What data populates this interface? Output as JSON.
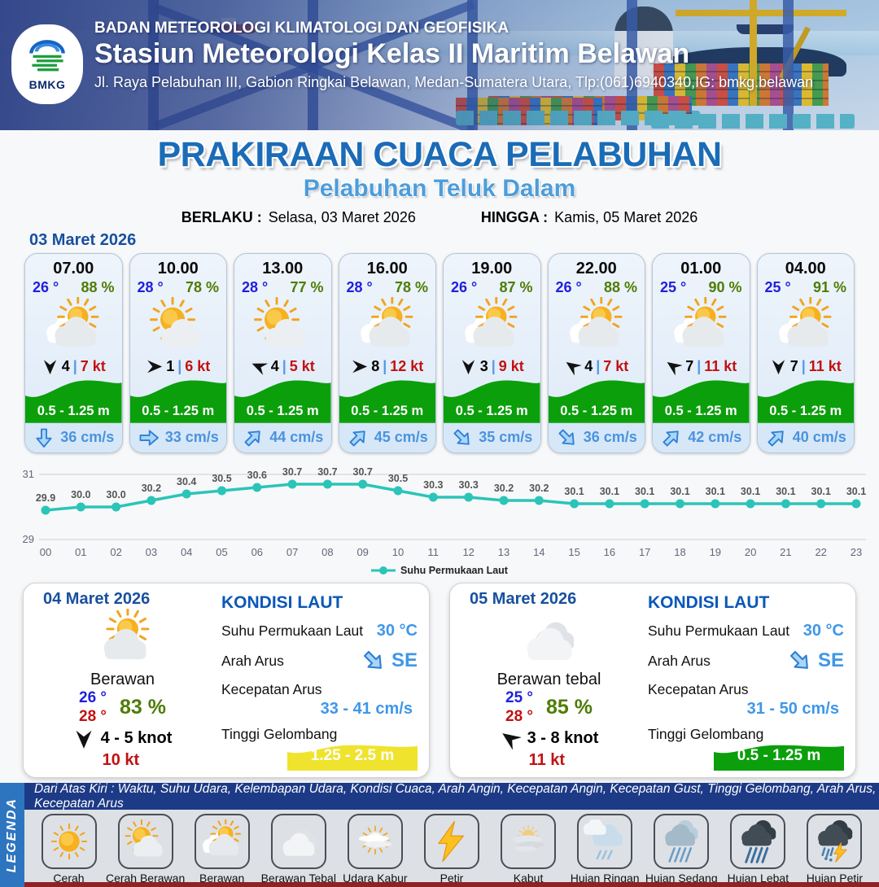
{
  "header": {
    "logo_text": "BMKG",
    "agency": "BADAN METEOROLOGI KLIMATOLOGI DAN GEOFISIKA",
    "station": "Stasiun Meteorologi Kelas II Maritim Belawan",
    "address": "Jl. Raya Pelabuhan III, Gabion Ringkai Belawan, Medan-Sumatera Utara, Tlp:(061)6940340,IG: bmkg.belawan"
  },
  "title_block": {
    "main": "PRAKIRAAN CUACA PELABUHAN",
    "subtitle": "Pelabuhan Teluk Dalam",
    "berlaku_label": "BERLAKU :",
    "berlaku_value": "Selasa, 03 Maret 2026",
    "hingga_label": "HINGGA :",
    "hingga_value": "Kamis, 05 Maret 2026"
  },
  "forecast": {
    "date_label": "03 Maret 2026",
    "cards": [
      {
        "time": "07.00",
        "temp": "26 °",
        "humidity": "88 %",
        "icon": "berawan",
        "wind_dir": "S",
        "wind_deg": 90,
        "wind_speed": "4",
        "gust": "7 kt",
        "wave": "0.5 - 1.25 m",
        "current_dir": "S",
        "current_deg": 90,
        "current": "36 cm/s"
      },
      {
        "time": "10.00",
        "temp": "28 °",
        "humidity": "78 %",
        "icon": "cerah-berawan",
        "wind_dir": "E",
        "wind_deg": 0,
        "wind_speed": "1",
        "gust": "6 kt",
        "wave": "0.5 - 1.25 m",
        "current_dir": "E",
        "current_deg": 0,
        "current": "33 cm/s"
      },
      {
        "time": "13.00",
        "temp": "28 °",
        "humidity": "77 %",
        "icon": "cerah-berawan",
        "wind_dir": "WNW",
        "wind_deg": 203,
        "wind_speed": "4",
        "gust": "5 kt",
        "wave": "0.5 - 1.25 m",
        "current_dir": "NE",
        "current_deg": -45,
        "current": "44 cm/s"
      },
      {
        "time": "16.00",
        "temp": "28 °",
        "humidity": "78 %",
        "icon": "berawan",
        "wind_dir": "E",
        "wind_deg": 0,
        "wind_speed": "8",
        "gust": "12 kt",
        "wave": "0.5 - 1.25 m",
        "current_dir": "NE",
        "current_deg": -45,
        "current": "45 cm/s"
      },
      {
        "time": "19.00",
        "temp": "26 °",
        "humidity": "87 %",
        "icon": "berawan",
        "wind_dir": "S",
        "wind_deg": 90,
        "wind_speed": "3",
        "gust": "9 kt",
        "wave": "0.5 - 1.25 m",
        "current_dir": "SE",
        "current_deg": 45,
        "current": "35 cm/s"
      },
      {
        "time": "22.00",
        "temp": "26 °",
        "humidity": "88 %",
        "icon": "berawan",
        "wind_dir": "NW",
        "wind_deg": 215,
        "wind_speed": "4",
        "gust": "7 kt",
        "wave": "0.5 - 1.25 m",
        "current_dir": "SE",
        "current_deg": 45,
        "current": "36 cm/s"
      },
      {
        "time": "01.00",
        "temp": "25 °",
        "humidity": "90 %",
        "icon": "berawan",
        "wind_dir": "NW",
        "wind_deg": 215,
        "wind_speed": "7",
        "gust": "11 kt",
        "wave": "0.5 - 1.25 m",
        "current_dir": "NE",
        "current_deg": -45,
        "current": "42 cm/s"
      },
      {
        "time": "04.00",
        "temp": "25 °",
        "humidity": "91 %",
        "icon": "berawan",
        "wind_dir": "S",
        "wind_deg": 90,
        "wind_speed": "7",
        "gust": "11 kt",
        "wave": "0.5 - 1.25 m",
        "current_dir": "NE",
        "current_deg": -45,
        "current": "40 cm/s"
      }
    ]
  },
  "chart_data": {
    "type": "line",
    "x": [
      "00",
      "01",
      "02",
      "03",
      "04",
      "05",
      "06",
      "07",
      "08",
      "09",
      "10",
      "11",
      "12",
      "13",
      "14",
      "15",
      "16",
      "17",
      "18",
      "19",
      "20",
      "21",
      "22",
      "23"
    ],
    "values": [
      29.9,
      30.0,
      30.0,
      30.2,
      30.4,
      30.5,
      30.6,
      30.7,
      30.7,
      30.7,
      30.5,
      30.3,
      30.3,
      30.2,
      30.2,
      30.1,
      30.1,
      30.1,
      30.1,
      30.1,
      30.1,
      30.1,
      30.1,
      30.1
    ],
    "series_name": "Suhu Permukaan Laut",
    "xlabel": "",
    "ylabel": "",
    "ylim": [
      29,
      31
    ],
    "yticks": [
      29,
      31
    ],
    "grid": true,
    "legend_position": "bottom",
    "line_color": "#2bc4b8"
  },
  "day_panels": [
    {
      "date": "04 Maret 2026",
      "icon": "berawan",
      "condition": "Berawan",
      "temp_min": "26 °",
      "temp_max": "28 °",
      "humidity": "83 %",
      "wind_dir": "S",
      "wind_deg": 90,
      "wind_range": "4 - 5 knot",
      "gust": "10 kt",
      "sea": {
        "title": "KONDISI LAUT",
        "sst_label": "Suhu Permukaan Laut",
        "sst_value": "30 °C",
        "current_dir_label": "Arah Arus",
        "current_dir_value": "SE",
        "current_deg": 45,
        "current_speed_label": "Kecepatan Arus",
        "current_speed_value": "33 - 41 cm/s",
        "wave_label": "Tinggi Gelombang",
        "wave_value": "1.25 - 2.5 m",
        "wave_color": "#efe32e"
      }
    },
    {
      "date": "05 Maret 2026",
      "icon": "berawan-tebal",
      "condition": "Berawan tebal",
      "temp_min": "25 °",
      "temp_max": "28 °",
      "humidity": "85 %",
      "wind_dir": "NW",
      "wind_deg": 215,
      "wind_range": "3 - 8 knot",
      "gust": "11 kt",
      "sea": {
        "title": "KONDISI LAUT",
        "sst_label": "Suhu Permukaan Laut",
        "sst_value": "30 °C",
        "current_dir_label": "Arah Arus",
        "current_dir_value": "SE",
        "current_deg": 45,
        "current_speed_label": "Kecepatan Arus",
        "current_speed_value": "31 - 50 cm/s",
        "wave_label": "Tinggi Gelombang",
        "wave_value": "0.5 - 1.25 m",
        "wave_color": "#0b9f0b"
      }
    }
  ],
  "legend": {
    "title": "LEGENDA",
    "note": "Dari Atas Kiri : Waktu, Suhu Udara, Kelembapan Udara, Kondisi Cuaca, Arah Angin, Kecepatan Angin, Kecepatan Gust, Tinggi Gelombang, Arah Arus, Kecepatan Arus",
    "items": [
      {
        "icon": "cerah",
        "label": "Cerah"
      },
      {
        "icon": "cerah-berawan",
        "label": "Cerah Berawan"
      },
      {
        "icon": "berawan",
        "label": "Berawan"
      },
      {
        "icon": "berawan-tebal",
        "label": "Berawan Tebal"
      },
      {
        "icon": "udara-kabur",
        "label": "Udara Kabur"
      },
      {
        "icon": "petir",
        "label": "Petir"
      },
      {
        "icon": "kabut",
        "label": "Kabut"
      },
      {
        "icon": "hujan-ringan",
        "label": "Hujan Ringan"
      },
      {
        "icon": "hujan-sedang",
        "label": "Hujan Sedang"
      },
      {
        "icon": "hujan-lebat",
        "label": "Hujan Lebat"
      },
      {
        "icon": "hujan-petir",
        "label": "Hujan Petir"
      }
    ]
  },
  "colors": {
    "title_blue": "#1b6cb7",
    "subtitle_blue": "#4d9ddb",
    "date_navy": "#17509e",
    "temp_blue": "#2020dd",
    "humidity_green": "#4e7d05",
    "gust_red": "#c11212",
    "wave_green": "#0b9f0b",
    "wave_yellow": "#efe32e",
    "current_blue": "#4a93dd",
    "chart_teal": "#2bc4b8",
    "legend_bar_navy": "#1d3a86",
    "legend_strip_blue": "#2e75c0",
    "footer_maroon": "#8f2222"
  }
}
